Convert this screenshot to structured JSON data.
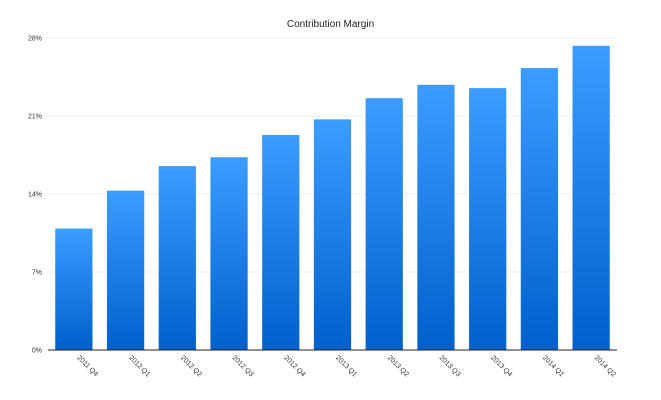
{
  "chart_data": {
    "type": "bar",
    "title": "Contribution Margin",
    "xlabel": "",
    "ylabel": "",
    "ylim": [
      0,
      28
    ],
    "yticks": [
      "0%",
      "7%",
      "14%",
      "21%",
      "28%"
    ],
    "ytick_values": [
      0,
      7,
      14,
      21,
      28
    ],
    "grid": true,
    "legend": "none",
    "categories": [
      "2011 Q4",
      "2012 Q1",
      "2012 Q2",
      "2012 Q3",
      "2012 Q4",
      "2013 Q1",
      "2013 Q2",
      "2013 Q3",
      "2013 Q4",
      "2014 Q1",
      "2014 Q2"
    ],
    "values": [
      10.9,
      14.3,
      16.5,
      17.3,
      19.3,
      20.7,
      22.6,
      23.8,
      23.5,
      25.3,
      27.3
    ],
    "colors": {
      "bar_top": "#3d9cff",
      "bar_bottom": "#0060cc",
      "grid": "#eeeeee",
      "axis": "#222222"
    }
  }
}
